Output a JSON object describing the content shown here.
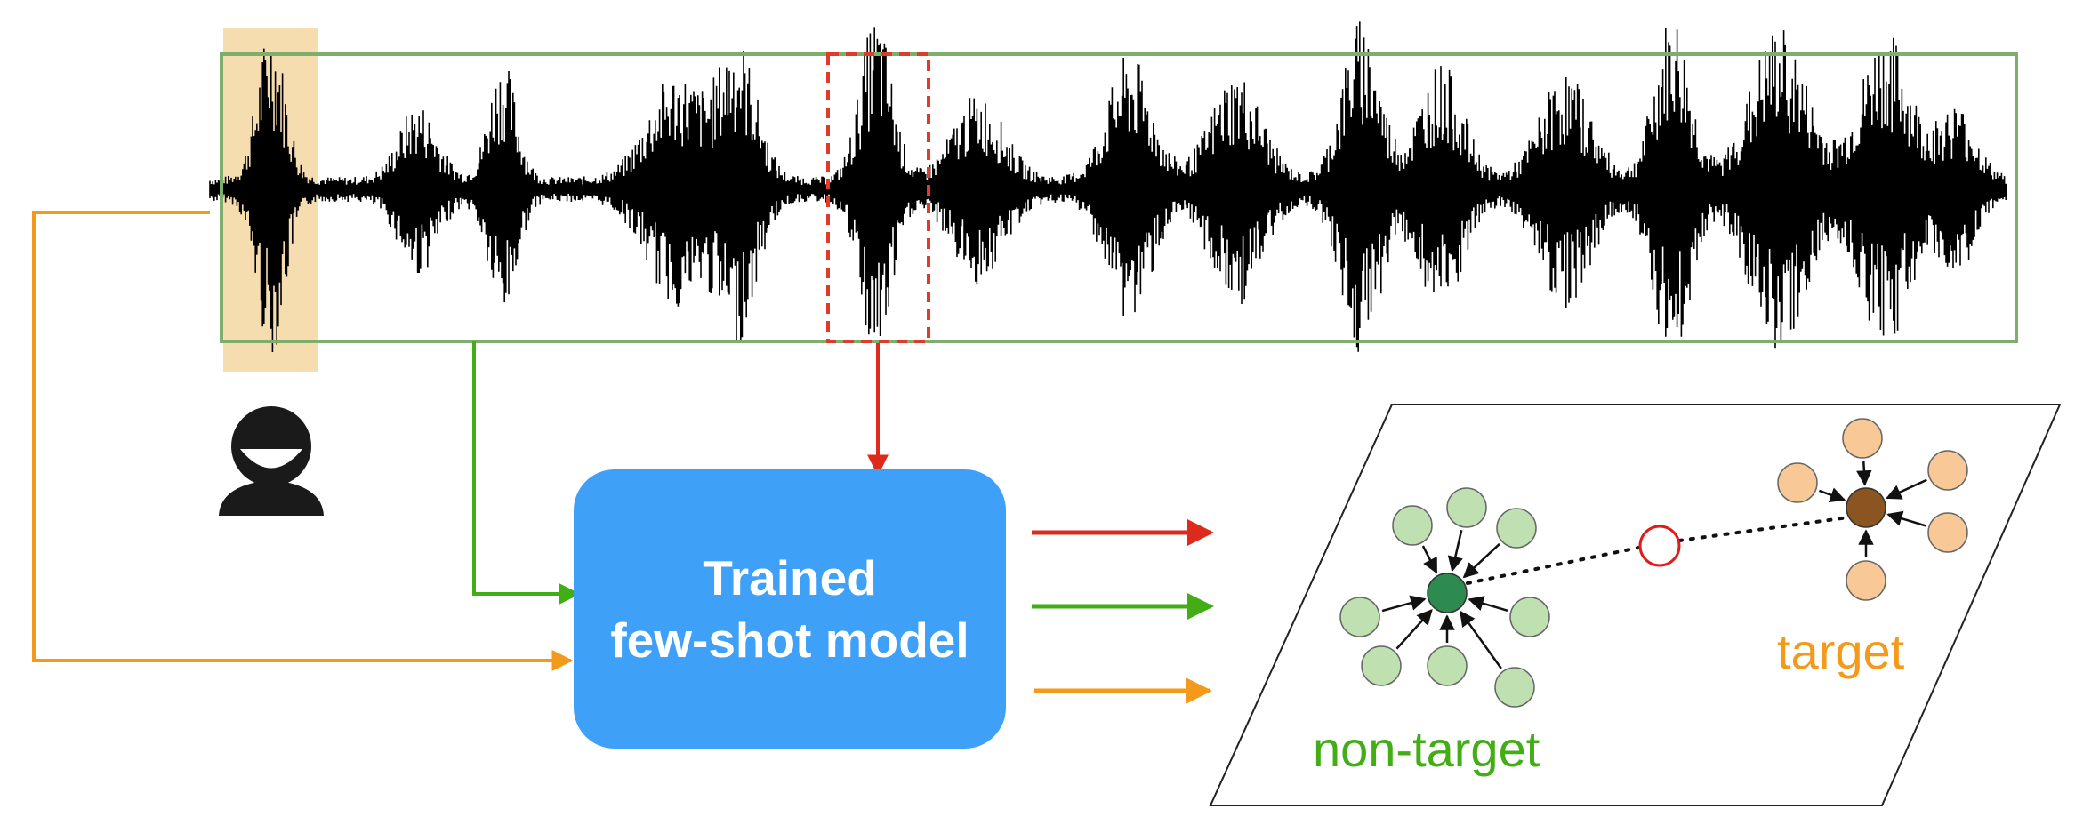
{
  "model": {
    "line1": "Trained",
    "line2": "few-shot model",
    "color": "#3fa0f7"
  },
  "embedding_space": {
    "target_label": "target",
    "non_target_label": "non-target",
    "target_color": "#f39a1c",
    "non_target_color": "#42ad14",
    "query_color": "#e01b1b"
  },
  "colors": {
    "query_arrow": "#dd2a1c",
    "support_non_target_arrow": "#42ad14",
    "support_target_arrow": "#f39a1c",
    "waveform_box": "#7fae6c",
    "annotated_segment": "#f6ddb0",
    "target_prototype": "#8a5520",
    "target_support": "#f8c897",
    "non_target_prototype": "#2e8b50",
    "non_target_support": "#bfe1b2"
  },
  "icons": {
    "annotator": "person-icon"
  }
}
